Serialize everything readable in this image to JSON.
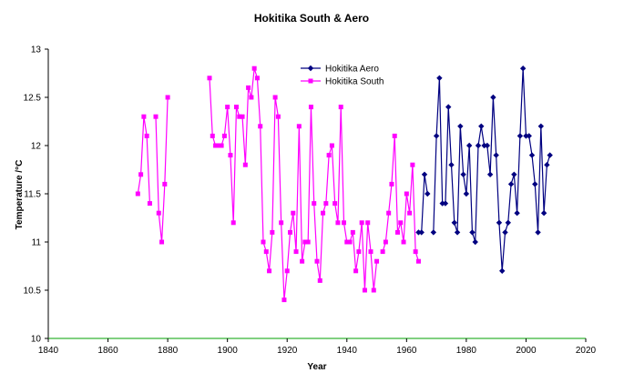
{
  "chart_data": {
    "type": "line",
    "title": "Hokitika South & Aero",
    "xlabel": "Year",
    "ylabel": "Temperature /°C",
    "xlim": [
      1840,
      2020
    ],
    "ylim": [
      10,
      13
    ],
    "xticks": [
      "1840",
      "1860",
      "1880",
      "1900",
      "1920",
      "1940",
      "1960",
      "1980",
      "2000",
      "2020"
    ],
    "yticks": [
      "10",
      "10.5",
      "11",
      "11.5",
      "12",
      "12.5",
      "13"
    ],
    "grid": false,
    "legend_position": "top-center",
    "series": [
      {
        "name": "Hokitika Aero",
        "color": "#000080",
        "marker": "diamond",
        "x": [
          1964,
          1965,
          1966,
          1967,
          1968,
          1969,
          1970,
          1971,
          1972,
          1973,
          1974,
          1975,
          1976,
          1977,
          1978,
          1979,
          1980,
          1981,
          1982,
          1983,
          1984,
          1985,
          1986,
          1987,
          1988,
          1989,
          1990,
          1991,
          1992,
          1993,
          1994,
          1995,
          1996,
          1997,
          1998,
          1999,
          2000,
          2001,
          2002,
          2003,
          2004,
          2005,
          2006,
          2007,
          2008
        ],
        "y": [
          11.1,
          11.1,
          11.7,
          11.5,
          null,
          11.1,
          12.1,
          12.7,
          11.4,
          11.4,
          12.4,
          11.8,
          11.2,
          11.1,
          12.2,
          11.7,
          11.5,
          12.0,
          11.1,
          11.0,
          12.0,
          12.2,
          12.0,
          12.0,
          11.7,
          12.5,
          11.9,
          11.2,
          10.7,
          11.1,
          11.2,
          11.6,
          11.7,
          11.3,
          12.1,
          12.8,
          12.1,
          12.1,
          11.9,
          11.6,
          11.1,
          12.2,
          11.3,
          11.8,
          11.9
        ]
      },
      {
        "name": "Hokitika South",
        "color": "#ff00ff",
        "marker": "square",
        "x": [
          1870,
          1871,
          1872,
          1873,
          1874,
          1875,
          1876,
          1877,
          1878,
          1879,
          1880,
          null,
          1894,
          1895,
          1896,
          1897,
          1898,
          1899,
          1900,
          1901,
          1902,
          1903,
          1904,
          1905,
          1906,
          1907,
          1908,
          1909,
          1910,
          1911,
          1912,
          1913,
          1914,
          1915,
          1916,
          1917,
          1918,
          1919,
          1920,
          1921,
          1922,
          1923,
          1924,
          1925,
          1926,
          1927,
          1928,
          1929,
          1930,
          1931,
          1932,
          1933,
          1934,
          1935,
          1936,
          1937,
          1938,
          1939,
          1940,
          1941,
          1942,
          1943,
          1944,
          1945,
          1946,
          1947,
          1948,
          1949,
          1950,
          1951,
          1952,
          1953,
          1954,
          1955,
          1956,
          1957,
          1958,
          1959,
          1960,
          1961,
          1962,
          1963,
          1964
        ],
        "y": [
          11.5,
          11.7,
          12.3,
          12.1,
          11.4,
          null,
          12.3,
          11.3,
          11.0,
          11.6,
          12.5,
          null,
          12.7,
          12.1,
          12.0,
          12.0,
          12.0,
          12.1,
          12.4,
          11.9,
          11.2,
          12.4,
          12.3,
          12.3,
          11.8,
          12.6,
          12.5,
          12.8,
          12.7,
          12.2,
          11.0,
          10.9,
          10.7,
          11.1,
          12.5,
          12.3,
          11.2,
          10.4,
          10.7,
          11.1,
          11.3,
          10.9,
          12.2,
          10.8,
          11.0,
          11.0,
          12.4,
          11.4,
          10.8,
          10.6,
          11.3,
          11.4,
          11.9,
          12.0,
          11.4,
          11.2,
          12.4,
          11.2,
          11.0,
          11.0,
          11.1,
          10.7,
          10.9,
          11.2,
          10.5,
          11.2,
          10.9,
          10.5,
          10.8,
          null,
          10.9,
          11.0,
          11.3,
          11.6,
          12.1,
          11.1,
          11.2,
          11.0,
          11.5,
          11.3,
          11.8,
          10.9,
          10.8
        ]
      }
    ]
  }
}
